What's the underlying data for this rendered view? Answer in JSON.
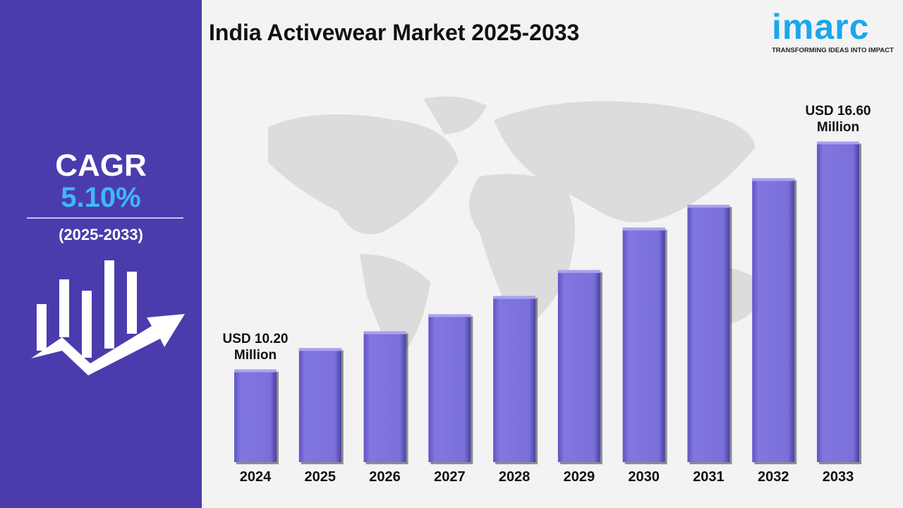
{
  "title": "India Activewear Market 2025-2033",
  "logo": {
    "word": "imarc",
    "tagline": "TRANSFORMING IDEAS INTO IMPACT"
  },
  "sidebar": {
    "cagr_label": "CAGR",
    "cagr_value": "5.10%",
    "period": "(2025-2033)",
    "icon": "bar-chart-growth-arrow-icon"
  },
  "colors": {
    "sidebar": "#4b3cae",
    "accent": "#3fb8f5",
    "bar": "#7b70da",
    "logo": "#1aa7ee"
  },
  "chart_data": {
    "type": "bar",
    "title": "India Activewear Market 2025-2033",
    "categories": [
      "2024",
      "2025",
      "2026",
      "2027",
      "2028",
      "2029",
      "2030",
      "2031",
      "2032",
      "2033"
    ],
    "values": [
      10.2,
      10.8,
      11.27,
      11.75,
      12.26,
      12.99,
      14.18,
      14.82,
      15.57,
      16.6
    ],
    "unit": "USD Million",
    "annotations": [
      {
        "category": "2024",
        "line1": "USD 10.20",
        "line2": "Million"
      },
      {
        "category": "2033",
        "line1": "USD 16.60",
        "line2": "Million"
      }
    ],
    "ylim": [
      7.6,
      17.6
    ],
    "grid": false,
    "legend": "none"
  }
}
